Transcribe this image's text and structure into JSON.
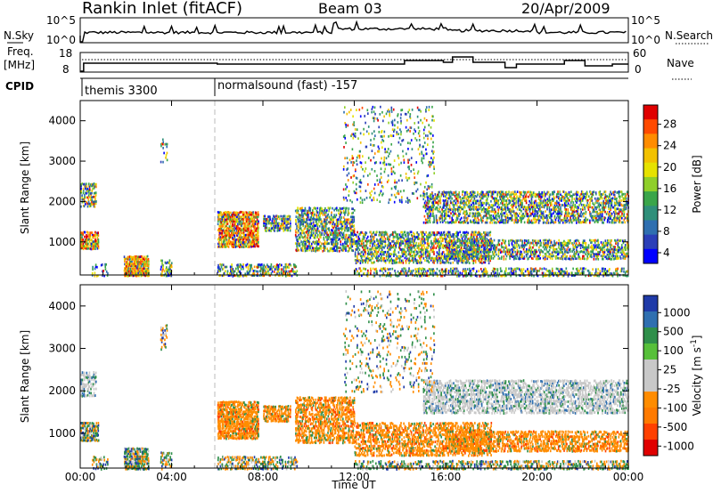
{
  "header": {
    "station": "Rankin Inlet (fitACF)",
    "beam": "Beam 03",
    "date": "20/Apr/2009"
  },
  "noise_panel": {
    "left_label": "N.Sky",
    "right_label": "N.Search",
    "left_ticks": [
      "10^5",
      "10^0"
    ],
    "right_ticks": [
      "10^5",
      "10^0"
    ]
  },
  "freq_panel": {
    "left_label_line1": "Freq.",
    "left_label_line2": "[MHz]",
    "right_label": "Nave",
    "left_ticks": [
      "18",
      "8"
    ],
    "right_ticks": [
      "60",
      "0"
    ]
  },
  "cpid": {
    "label": "CPID",
    "segments": [
      {
        "name": "themis 3300",
        "start_hour": 0
      },
      {
        "name": "normalsound (fast) -157",
        "start_hour": 6
      }
    ]
  },
  "chart_data": [
    {
      "type": "heatmap",
      "ylabel": "Slant Range [km]",
      "xlabel": "",
      "x_ticks": [
        "00:00",
        "04:00",
        "08:00",
        "12:00",
        "16:00",
        "20:00",
        "00:00"
      ],
      "xlim_hours": [
        0,
        24
      ],
      "ylim_km": [
        180,
        4500
      ],
      "y_ticks": [
        1000,
        2000,
        3000,
        4000
      ],
      "colorbar": {
        "label": "Power [dB]",
        "ticks": [
          "28",
          "24",
          "20",
          "16",
          "12",
          "8",
          "4"
        ],
        "colors": [
          "#e00000",
          "#ff4a00",
          "#ff8c00",
          "#f2c100",
          "#e6e200",
          "#8fcf2a",
          "#3aa54a",
          "#2f8f7a",
          "#2f6fb0",
          "#2b3fb8",
          "#0000ff"
        ]
      }
    },
    {
      "type": "heatmap",
      "ylabel": "Slant Range [km]",
      "xlabel": "Time UT",
      "x_ticks": [
        "00:00",
        "04:00",
        "08:00",
        "12:00",
        "16:00",
        "20:00",
        "00:00"
      ],
      "xlim_hours": [
        0,
        24
      ],
      "ylim_km": [
        180,
        4500
      ],
      "y_ticks": [
        1000,
        2000,
        3000,
        4000
      ],
      "colorbar": {
        "label": "Velocity [m s^-1]",
        "ticks": [
          "1000",
          "500",
          "100",
          "25",
          "-25",
          "-100",
          "-500",
          "-1000"
        ],
        "colors": [
          "#1f3aa8",
          "#2f6fb0",
          "#2f8f4a",
          "#57c03a",
          "#c8c8c8",
          "#c8c8c8",
          "#ff8c00",
          "#ff7a00",
          "#ff4000",
          "#e00000"
        ]
      }
    }
  ]
}
